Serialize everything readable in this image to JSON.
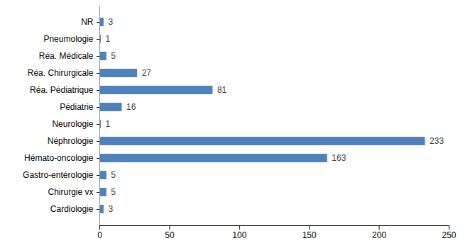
{
  "chart_data": {
    "type": "bar",
    "orientation": "horizontal",
    "categories": [
      "NR",
      "Pneumologie",
      "Réa. Médicale",
      "Réa. Chirurgicale",
      "Réa. Pédiatrique",
      "Pédiatrie",
      "Neurologie",
      "Néphrologie",
      "Hémato-oncologie",
      "Gastro-entérologie",
      "Chirurgie vx",
      "Cardiologie"
    ],
    "values": [
      3,
      1,
      5,
      27,
      81,
      16,
      1,
      233,
      163,
      5,
      5,
      3
    ],
    "color": "#4f81bd",
    "xlim": [
      0,
      250
    ],
    "xticks": [
      0,
      50,
      100,
      150,
      200,
      250
    ],
    "grid": false,
    "data_labels": true
  }
}
